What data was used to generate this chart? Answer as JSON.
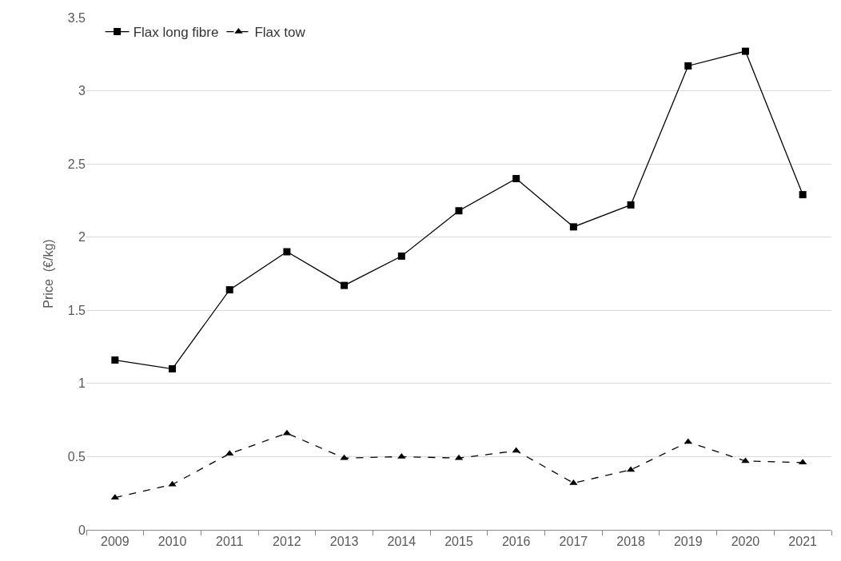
{
  "chart_data": {
    "type": "line",
    "ylabel": "Price  (€/kg)",
    "categories": [
      "2009",
      "2010",
      "2011",
      "2012",
      "2013",
      "2014",
      "2015",
      "2016",
      "2017",
      "2018",
      "2019",
      "2020",
      "2021"
    ],
    "series": [
      {
        "name": "Flax long fibre",
        "color": "#000000",
        "marker": "square",
        "line_style": "solid",
        "values": [
          1.16,
          1.1,
          1.64,
          1.9,
          1.67,
          1.87,
          2.18,
          2.4,
          2.07,
          2.22,
          3.17,
          3.27,
          2.29
        ]
      },
      {
        "name": "Flax tow",
        "color": "#000000",
        "marker": "triangle",
        "line_style": "dashed",
        "values": [
          0.22,
          0.31,
          0.52,
          0.66,
          0.49,
          0.5,
          0.49,
          0.54,
          0.32,
          0.41,
          0.6,
          0.47,
          0.46
        ]
      }
    ],
    "ylim": [
      0,
      3.5
    ],
    "yticks": [
      0,
      0.5,
      1,
      1.5,
      2,
      2.5,
      3,
      3.5
    ],
    "grid": "y",
    "legend": "top left"
  }
}
